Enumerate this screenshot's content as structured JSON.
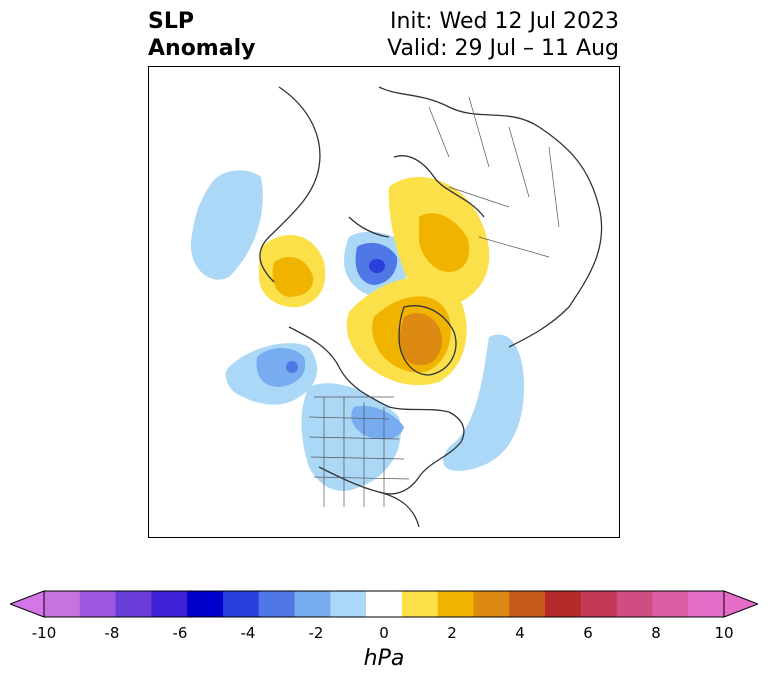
{
  "title": {
    "left_line1": "SLP",
    "left_line2": "Anomaly",
    "right_line1": "Init: Wed 12 Jul 2023",
    "right_line2": "Valid: 29 Jul – 11 Aug"
  },
  "map": {
    "projection": "polar stereographic, North Pole centered",
    "features": [
      "coastlines",
      "country borders",
      "US state borders",
      "Canadian province borders"
    ]
  },
  "colorbar": {
    "unit": "hPa",
    "extend": "both",
    "tick_labels": [
      "-10",
      "-8",
      "-6",
      "-4",
      "-2",
      "0",
      "2",
      "4",
      "6",
      "8",
      "10"
    ],
    "levels": [
      -10,
      -9,
      -8,
      -7,
      -6,
      -5,
      -4,
      -3,
      -2,
      -1,
      1,
      2,
      3,
      4,
      5,
      6,
      7,
      8,
      9,
      10
    ],
    "colors": [
      "#c872e0",
      "#9c57e0",
      "#6b3dd9",
      "#3d21d4",
      "#0000cc",
      "#2b3fdc",
      "#4f78e6",
      "#78acf0",
      "#abd8f7",
      "#ffffff",
      "#fbe04a",
      "#f0b400",
      "#dc8a12",
      "#c65a1d",
      "#b52a2a",
      "#c23a55",
      "#cf4d80",
      "#db5ea7",
      "#e66ec8"
    ],
    "under_color": "#d475e8",
    "over_color": "#e66ec8"
  }
}
